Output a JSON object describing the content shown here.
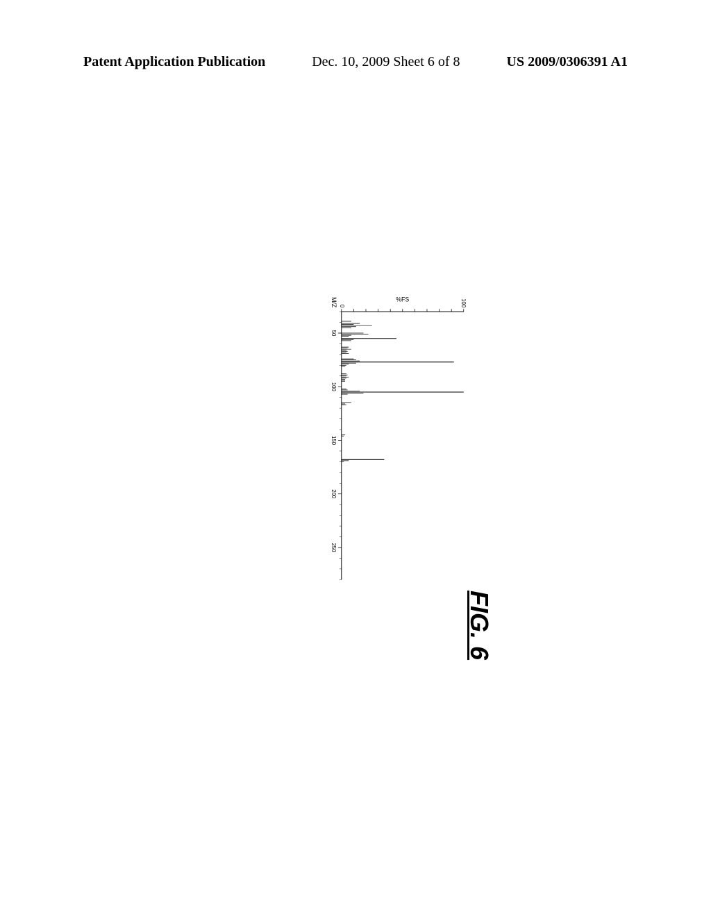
{
  "header": {
    "left": "Patent Application Publication",
    "center": "Dec. 10, 2009  Sheet 6 of 8",
    "right": "US 2009/0306391 A1"
  },
  "figure_label": "FIG. 6",
  "spectrum": {
    "type": "mass-spectrum",
    "xlabel": "M/Z",
    "ylabel": "%FS",
    "xlim": [
      30,
      280
    ],
    "ylim": [
      0,
      100
    ],
    "xticks": [
      50,
      100,
      150,
      200,
      250
    ],
    "yticks": [
      0,
      100
    ],
    "ytick_label_0": "0",
    "ytick_label_100": "100",
    "background_color": "#ffffff",
    "axis_color": "#000000",
    "peak_color": "#000000",
    "axis_width": 2,
    "label_fontsize": 18,
    "tick_fontsize": 16,
    "peaks": [
      {
        "mz": 39,
        "intensity": 8
      },
      {
        "mz": 41,
        "intensity": 15
      },
      {
        "mz": 42,
        "intensity": 10
      },
      {
        "mz": 43,
        "intensity": 25
      },
      {
        "mz": 44,
        "intensity": 12
      },
      {
        "mz": 45,
        "intensity": 8
      },
      {
        "mz": 50,
        "intensity": 18
      },
      {
        "mz": 51,
        "intensity": 22
      },
      {
        "mz": 52,
        "intensity": 8
      },
      {
        "mz": 53,
        "intensity": 6
      },
      {
        "mz": 55,
        "intensity": 45
      },
      {
        "mz": 56,
        "intensity": 10
      },
      {
        "mz": 57,
        "intensity": 8
      },
      {
        "mz": 63,
        "intensity": 6
      },
      {
        "mz": 64,
        "intensity": 5
      },
      {
        "mz": 65,
        "intensity": 8
      },
      {
        "mz": 66,
        "intensity": 4
      },
      {
        "mz": 67,
        "intensity": 5
      },
      {
        "mz": 68,
        "intensity": 4
      },
      {
        "mz": 69,
        "intensity": 6
      },
      {
        "mz": 74,
        "intensity": 10
      },
      {
        "mz": 75,
        "intensity": 12
      },
      {
        "mz": 76,
        "intensity": 15
      },
      {
        "mz": 77,
        "intensity": 92
      },
      {
        "mz": 78,
        "intensity": 12
      },
      {
        "mz": 79,
        "intensity": 6
      },
      {
        "mz": 80,
        "intensity": 4
      },
      {
        "mz": 81,
        "intensity": 3
      },
      {
        "mz": 88,
        "intensity": 4
      },
      {
        "mz": 89,
        "intensity": 5
      },
      {
        "mz": 90,
        "intensity": 4
      },
      {
        "mz": 91,
        "intensity": 6
      },
      {
        "mz": 92,
        "intensity": 4
      },
      {
        "mz": 93,
        "intensity": 3
      },
      {
        "mz": 94,
        "intensity": 3
      },
      {
        "mz": 95,
        "intensity": 3
      },
      {
        "mz": 102,
        "intensity": 4
      },
      {
        "mz": 103,
        "intensity": 5
      },
      {
        "mz": 104,
        "intensity": 15
      },
      {
        "mz": 105,
        "intensity": 100
      },
      {
        "mz": 106,
        "intensity": 18
      },
      {
        "mz": 107,
        "intensity": 5
      },
      {
        "mz": 115,
        "intensity": 8
      },
      {
        "mz": 116,
        "intensity": 3
      },
      {
        "mz": 117,
        "intensity": 4
      },
      {
        "mz": 145,
        "intensity": 3
      },
      {
        "mz": 146,
        "intensity": 2
      },
      {
        "mz": 168,
        "intensity": 35
      },
      {
        "mz": 169,
        "intensity": 6
      },
      {
        "mz": 170,
        "intensity": 2
      }
    ]
  }
}
